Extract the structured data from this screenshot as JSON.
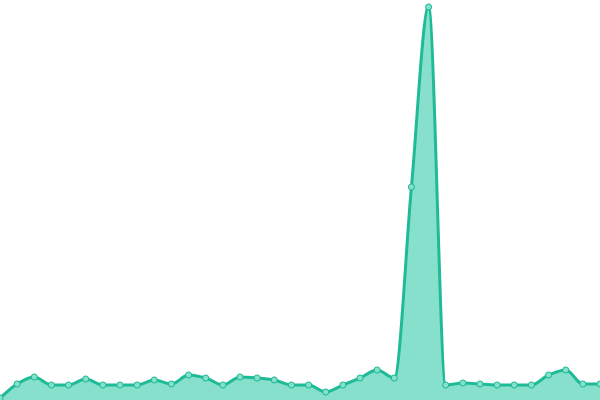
{
  "chart_data": {
    "type": "area",
    "values": [
      2,
      16,
      23,
      15,
      15,
      21,
      15,
      15,
      15,
      20,
      16,
      25,
      22,
      15,
      23,
      22,
      20,
      15,
      15,
      8,
      15,
      22,
      30,
      22,
      213,
      393,
      15,
      17,
      16,
      15,
      15,
      15,
      25,
      30,
      16,
      16
    ],
    "ylim": [
      0,
      400
    ],
    "color": "#1fba96",
    "fill_color": "#86e0cc"
  }
}
